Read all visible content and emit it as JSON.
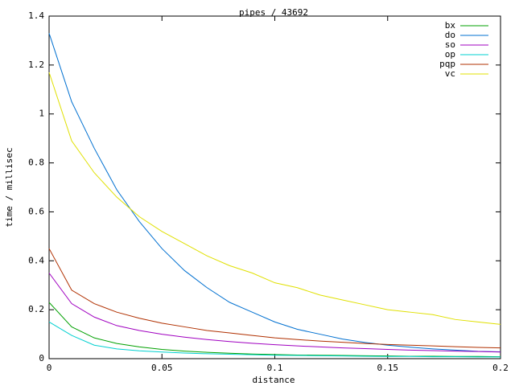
{
  "chart_data": {
    "type": "line",
    "title": "pipes / 43692",
    "x_label": "distance",
    "y_label": "time / millisec",
    "x": [
      0,
      0.01,
      0.02,
      0.03,
      0.04,
      0.05,
      0.06,
      0.07,
      0.08,
      0.09,
      0.1,
      0.11,
      0.12,
      0.13,
      0.14,
      0.15,
      0.16,
      0.17,
      0.18,
      0.19,
      0.2
    ],
    "series": [
      {
        "name": "bx",
        "color": "#00a000",
        "values": [
          0.23,
          0.13,
          0.085,
          0.062,
          0.048,
          0.038,
          0.031,
          0.026,
          0.022,
          0.019,
          0.017,
          0.015,
          0.014,
          0.013,
          0.012,
          0.011,
          0.01,
          0.01,
          0.009,
          0.009,
          0.008
        ]
      },
      {
        "name": "do",
        "color": "#0070d0",
        "values": [
          1.33,
          1.05,
          0.86,
          0.69,
          0.56,
          0.45,
          0.36,
          0.29,
          0.23,
          0.19,
          0.15,
          0.12,
          0.1,
          0.08,
          0.066,
          0.055,
          0.047,
          0.04,
          0.035,
          0.03,
          0.028
        ]
      },
      {
        "name": "so",
        "color": "#a000c0",
        "values": [
          0.35,
          0.225,
          0.17,
          0.135,
          0.115,
          0.1,
          0.088,
          0.078,
          0.07,
          0.063,
          0.057,
          0.052,
          0.048,
          0.044,
          0.041,
          0.038,
          0.035,
          0.033,
          0.031,
          0.029,
          0.027
        ]
      },
      {
        "name": "op",
        "color": "#00d0d0",
        "values": [
          0.15,
          0.095,
          0.055,
          0.04,
          0.032,
          0.027,
          0.023,
          0.02,
          0.018,
          0.016,
          0.014,
          0.013,
          0.012,
          0.011,
          0.01,
          0.009,
          0.009,
          0.008,
          0.008,
          0.007,
          0.007
        ]
      },
      {
        "name": "pqp",
        "color": "#b03000",
        "values": [
          0.45,
          0.28,
          0.225,
          0.19,
          0.165,
          0.145,
          0.13,
          0.115,
          0.105,
          0.095,
          0.085,
          0.078,
          0.072,
          0.067,
          0.062,
          0.058,
          0.055,
          0.052,
          0.049,
          0.046,
          0.044
        ]
      },
      {
        "name": "vc",
        "color": "#e0e000",
        "values": [
          1.17,
          0.89,
          0.76,
          0.66,
          0.58,
          0.52,
          0.47,
          0.42,
          0.38,
          0.35,
          0.31,
          0.29,
          0.26,
          0.24,
          0.22,
          0.2,
          0.19,
          0.18,
          0.16,
          0.15,
          0.14
        ]
      }
    ],
    "xlim": [
      0,
      0.2
    ],
    "xticks": [
      0,
      0.05,
      0.1,
      0.15,
      0.2
    ],
    "ylim": [
      0,
      1.4
    ],
    "yticks": [
      0,
      0.2,
      0.4,
      0.6,
      0.8,
      1,
      1.2,
      1.4
    ],
    "grid": false,
    "legend": "top-right"
  }
}
